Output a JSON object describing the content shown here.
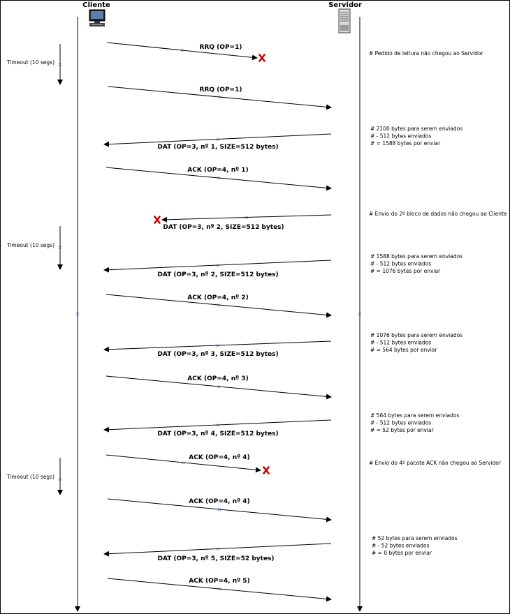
{
  "actors": {
    "client": "Cliente",
    "server": "Servidor"
  },
  "messages": [
    {
      "dir": "c2s",
      "label": "RRQ (OP=1)",
      "lost": true
    },
    {
      "dir": "c2s",
      "label": "RRQ (OP=1)",
      "lost": false
    },
    {
      "dir": "s2c",
      "label": "DAT (OP=3, nº 1, SIZE=512 bytes)",
      "lost": false
    },
    {
      "dir": "c2s",
      "label": "ACK (OP=4, nº 1)",
      "lost": false
    },
    {
      "dir": "s2c",
      "label": "DAT (OP=3, nº 2, SIZE=512 bytes)",
      "lost": true
    },
    {
      "dir": "s2c",
      "label": "DAT (OP=3, nº 2, SIZE=512 bytes)",
      "lost": false
    },
    {
      "dir": "c2s",
      "label": "ACK (OP=4, nº 2)",
      "lost": false
    },
    {
      "dir": "s2c",
      "label": "DAT (OP=3, nº 3, SIZE=512 bytes)",
      "lost": false
    },
    {
      "dir": "c2s",
      "label": "ACK (OP=4, nº 3)",
      "lost": false
    },
    {
      "dir": "s2c",
      "label": "DAT (OP=3, nº 4, SIZE=512 bytes)",
      "lost": false
    },
    {
      "dir": "c2s",
      "label": "ACK (OP=4, nº 4)",
      "lost": true
    },
    {
      "dir": "c2s",
      "label": "ACK (OP=4, nº 4)",
      "lost": false
    },
    {
      "dir": "s2c",
      "label": "DAT (OP=3, nº 5, SIZE=52 bytes)",
      "lost": false
    },
    {
      "dir": "c2s",
      "label": "ACK (OP=4, nº 5)",
      "lost": false
    }
  ],
  "timeouts": [
    {
      "label": "Timeout (10 segs)"
    },
    {
      "label": "Timeout (10 segs)"
    },
    {
      "label": "Timeout (10 segs)"
    }
  ],
  "notes": [
    {
      "lines": [
        "#  Pedido de leitura não chegou ao Servidor"
      ]
    },
    {
      "lines": [
        "#    2100 bytes para serem enviados",
        "#    - 512 bytes enviados",
        "# = 1588 bytes por enviar"
      ]
    },
    {
      "lines": [
        "#  Envio do 2º bloco de dados não chegou ao Cliente"
      ]
    },
    {
      "lines": [
        "#    1588 bytes para serem enviados",
        "#    - 512 bytes enviados",
        "# = 1076 bytes por enviar"
      ]
    },
    {
      "lines": [
        "#  1076 bytes para serem enviados",
        "#  - 512 bytes enviados",
        "#  = 564 bytes por enviar"
      ]
    },
    {
      "lines": [
        "#   564 bytes para serem enviados",
        "# - 512 bytes enviados",
        "# = 52 bytes por enviar"
      ]
    },
    {
      "lines": [
        "#  Envio do 4º pacote ACK não chegou ao Servidor"
      ]
    },
    {
      "lines": [
        "#    52 bytes para serem enviados",
        "#  - 52 bytes enviados",
        "#  = 0 bytes por enviar"
      ]
    }
  ],
  "icons": {
    "client": "computer-icon",
    "server": "server-tower-icon",
    "lost": "red-x-icon"
  },
  "colors": {
    "line": "#000000",
    "lost_mark": "#cc0000",
    "tick_mark": "#3344aa"
  }
}
